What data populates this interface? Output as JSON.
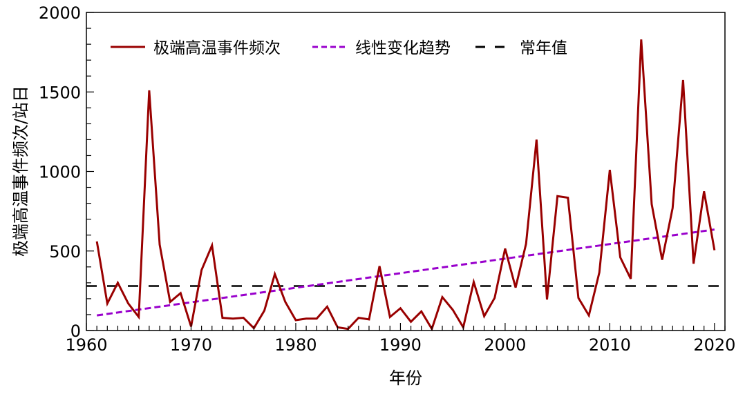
{
  "chart_data": {
    "type": "line",
    "title": "",
    "xlabel": "年份",
    "ylabel": "极端高温事件频次/站日",
    "xlim": [
      1960,
      2021
    ],
    "ylim": [
      0,
      2000
    ],
    "xticks": [
      1960,
      1970,
      1980,
      1990,
      2000,
      2010,
      2020
    ],
    "yticks": [
      0,
      500,
      1000,
      1500,
      2000
    ],
    "grid": false,
    "legend_placement": "top-left",
    "x": [
      1961,
      1962,
      1963,
      1964,
      1965,
      1966,
      1967,
      1968,
      1969,
      1970,
      1971,
      1972,
      1973,
      1974,
      1975,
      1976,
      1977,
      1978,
      1979,
      1980,
      1981,
      1982,
      1983,
      1984,
      1985,
      1986,
      1987,
      1988,
      1989,
      1990,
      1991,
      1992,
      1993,
      1994,
      1995,
      1996,
      1997,
      1998,
      1999,
      2000,
      2001,
      2002,
      2003,
      2004,
      2005,
      2006,
      2007,
      2008,
      2009,
      2010,
      2011,
      2012,
      2013,
      2014,
      2015,
      2016,
      2017,
      2018,
      2019,
      2020
    ],
    "series": [
      {
        "name": "极端高温事件频次",
        "color": "#990000",
        "style": "solid",
        "values": [
          560,
          170,
          300,
          170,
          85,
          1510,
          540,
          180,
          235,
          25,
          380,
          535,
          80,
          75,
          80,
          15,
          125,
          355,
          180,
          65,
          75,
          75,
          150,
          20,
          10,
          80,
          70,
          405,
          85,
          140,
          55,
          120,
          10,
          210,
          130,
          20,
          305,
          90,
          205,
          515,
          270,
          545,
          1200,
          195,
          845,
          835,
          205,
          95,
          365,
          1010,
          460,
          325,
          1830,
          795,
          445,
          770,
          1575,
          420,
          875,
          505
        ]
      },
      {
        "name": "线性变化趋势",
        "color": "#9900cc",
        "style": "dotted",
        "start": [
          1961,
          95
        ],
        "end": [
          2020,
          635
        ]
      },
      {
        "name": "常年值",
        "color": "#000000",
        "style": "dashed",
        "value": 280
      }
    ]
  }
}
